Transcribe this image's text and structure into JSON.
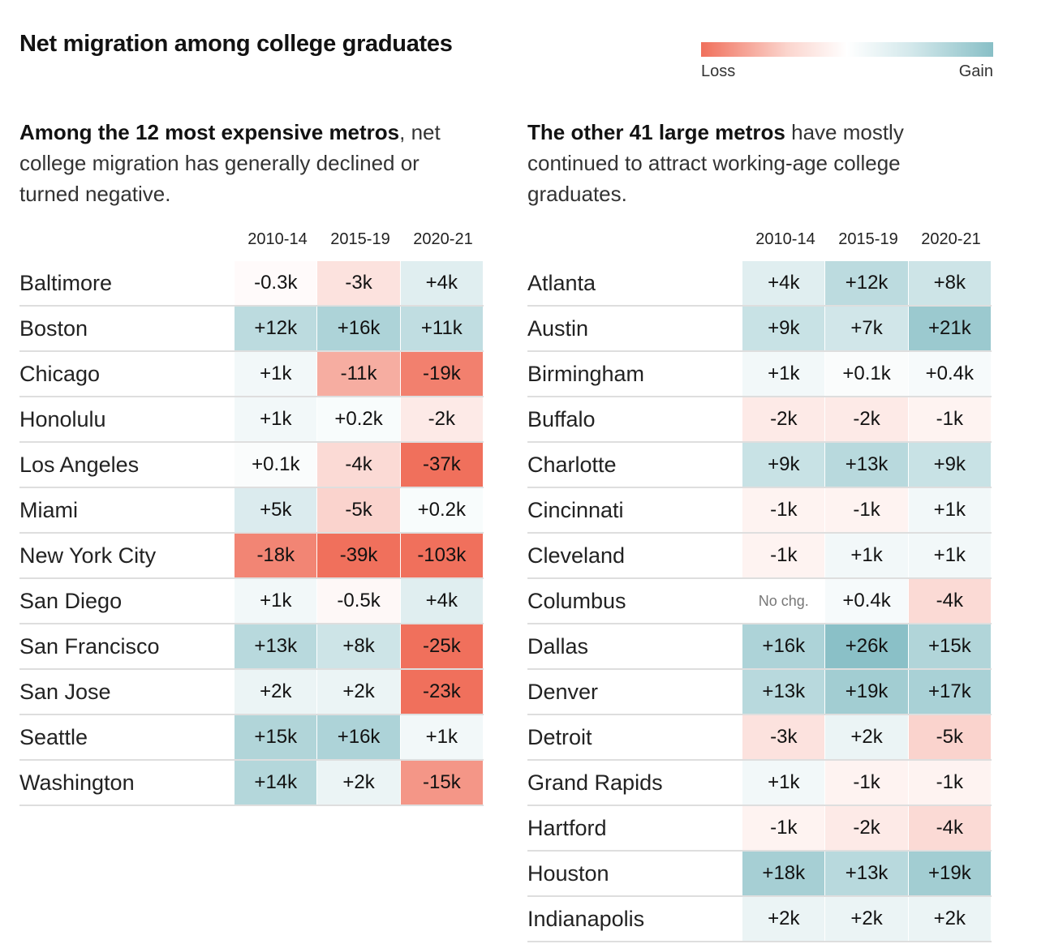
{
  "title": "Net migration among college graduates",
  "legend": {
    "loss": "Loss",
    "gain": "Gain"
  },
  "panels": [
    {
      "subtitle_bold": "Among the 12 most expensive metros",
      "subtitle_rest": ", net college migration has generally declined or turned negative.",
      "columns": [
        "2010-14",
        "2015-19",
        "2020-21"
      ],
      "rows": [
        {
          "name": "Baltimore",
          "values": [
            "-0.3k",
            "-3k",
            "+4k"
          ],
          "nums": [
            -0.3,
            -3,
            4
          ]
        },
        {
          "name": "Boston",
          "values": [
            "+12k",
            "+16k",
            "+11k"
          ],
          "nums": [
            12,
            16,
            11
          ]
        },
        {
          "name": "Chicago",
          "values": [
            "+1k",
            "-11k",
            "-19k"
          ],
          "nums": [
            1,
            -11,
            -19
          ]
        },
        {
          "name": "Honolulu",
          "values": [
            "+1k",
            "+0.2k",
            "-2k"
          ],
          "nums": [
            1,
            0.2,
            -2
          ]
        },
        {
          "name": "Los Angeles",
          "values": [
            "+0.1k",
            "-4k",
            "-37k"
          ],
          "nums": [
            0.1,
            -4,
            -37
          ]
        },
        {
          "name": "Miami",
          "values": [
            "+5k",
            "-5k",
            "+0.2k"
          ],
          "nums": [
            5,
            -5,
            0.2
          ]
        },
        {
          "name": "New York City",
          "values": [
            "-18k",
            "-39k",
            "-103k"
          ],
          "nums": [
            -18,
            -39,
            -103
          ]
        },
        {
          "name": "San Diego",
          "values": [
            "+1k",
            "-0.5k",
            "+4k"
          ],
          "nums": [
            1,
            -0.5,
            4
          ]
        },
        {
          "name": "San Francisco",
          "values": [
            "+13k",
            "+8k",
            "-25k"
          ],
          "nums": [
            13,
            8,
            -25
          ]
        },
        {
          "name": "San Jose",
          "values": [
            "+2k",
            "+2k",
            "-23k"
          ],
          "nums": [
            2,
            2,
            -23
          ]
        },
        {
          "name": "Seattle",
          "values": [
            "+15k",
            "+16k",
            "+1k"
          ],
          "nums": [
            15,
            16,
            1
          ]
        },
        {
          "name": "Washington",
          "values": [
            "+14k",
            "+2k",
            "-15k"
          ],
          "nums": [
            14,
            2,
            -15
          ]
        }
      ]
    },
    {
      "subtitle_bold": "The other 41 large metros",
      "subtitle_rest": " have mostly continued to attract working-age college graduates.",
      "columns": [
        "2010-14",
        "2015-19",
        "2020-21"
      ],
      "rows": [
        {
          "name": "Atlanta",
          "values": [
            "+4k",
            "+12k",
            "+8k"
          ],
          "nums": [
            4,
            12,
            8
          ]
        },
        {
          "name": "Austin",
          "values": [
            "+9k",
            "+7k",
            "+21k"
          ],
          "nums": [
            9,
            7,
            21
          ]
        },
        {
          "name": "Birmingham",
          "values": [
            "+1k",
            "+0.1k",
            "+0.4k"
          ],
          "nums": [
            1,
            0.1,
            0.4
          ]
        },
        {
          "name": "Buffalo",
          "values": [
            "-2k",
            "-2k",
            "-1k"
          ],
          "nums": [
            -2,
            -2,
            -1
          ]
        },
        {
          "name": "Charlotte",
          "values": [
            "+9k",
            "+13k",
            "+9k"
          ],
          "nums": [
            9,
            13,
            9
          ]
        },
        {
          "name": "Cincinnati",
          "values": [
            "-1k",
            "-1k",
            "+1k"
          ],
          "nums": [
            -1,
            -1,
            1
          ]
        },
        {
          "name": "Cleveland",
          "values": [
            "-1k",
            "+1k",
            "+1k"
          ],
          "nums": [
            -1,
            1,
            1
          ]
        },
        {
          "name": "Columbus",
          "values": [
            "No chg.",
            "+0.4k",
            "-4k"
          ],
          "nums": [
            0,
            0.4,
            -4
          ]
        },
        {
          "name": "Dallas",
          "values": [
            "+16k",
            "+26k",
            "+15k"
          ],
          "nums": [
            16,
            26,
            15
          ]
        },
        {
          "name": "Denver",
          "values": [
            "+13k",
            "+19k",
            "+17k"
          ],
          "nums": [
            13,
            19,
            17
          ]
        },
        {
          "name": "Detroit",
          "values": [
            "-3k",
            "+2k",
            "-5k"
          ],
          "nums": [
            -3,
            2,
            -5
          ]
        },
        {
          "name": "Grand Rapids",
          "values": [
            "+1k",
            "-1k",
            "-1k"
          ],
          "nums": [
            1,
            -1,
            -1
          ]
        },
        {
          "name": "Hartford",
          "values": [
            "-1k",
            "-2k",
            "-4k"
          ],
          "nums": [
            -1,
            -2,
            -4
          ]
        },
        {
          "name": "Houston",
          "values": [
            "+18k",
            "+13k",
            "+19k"
          ],
          "nums": [
            18,
            13,
            19
          ]
        },
        {
          "name": "Indianapolis",
          "values": [
            "+2k",
            "+2k",
            "+2k"
          ],
          "nums": [
            2,
            2,
            2
          ]
        }
      ]
    }
  ],
  "chart_data": {
    "type": "heatmap",
    "title": "Net migration among college graduates",
    "columns": [
      "2010-14",
      "2015-19",
      "2020-21"
    ],
    "unit": "thousands of people",
    "colors": {
      "loss": "#f0705c",
      "neutral": "#ffffff",
      "gain": "#88bfc6"
    }
  }
}
